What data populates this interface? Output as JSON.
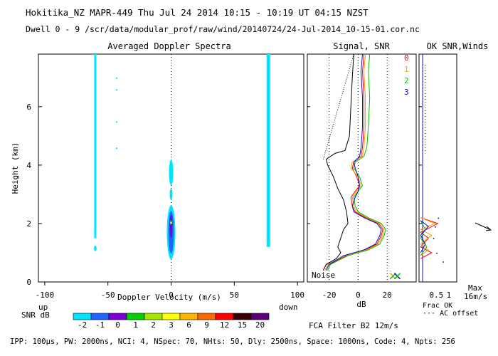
{
  "header": {
    "line1": "Hokitika_NZ  MAPR-449  Thu Jul 24 2014 10:15 - 10:19 UT 04:15 NZST",
    "line2": "Dwell  0 -  9   /scr/data/modular_prof/raw/wind/20140724/24-Jul-2014_10-15-01.cor.nc"
  },
  "footer": {
    "params": "IPP: 100µs,  PW: 2000ns,  NCI:   4,  NSpec: 70,  NHts: 50,  Dly: 2500ns,  Space: 1000ns,  Code: 4,  Npts: 256",
    "filter": "FCA Filter B2 12m/s"
  },
  "colors": {
    "snr_scale": [
      "#00e5ff",
      "#1e64ff",
      "#7a00d6",
      "#00d000",
      "#a5e600",
      "#ffff00",
      "#ffb400",
      "#ff6a00",
      "#ff0000",
      "#3a0000",
      "#5c007a"
    ],
    "channels": [
      "#ff0000",
      "#ffa000",
      "#00c000",
      "#1010cc"
    ]
  },
  "chart_data": [
    {
      "id": "doppler-spectra",
      "type": "heatmap",
      "title": "Averaged Doppler Spectra",
      "xlabel": "Doppler Velocity (m/s)",
      "ylabel": "Height (km)",
      "xlim": [
        -105,
        105
      ],
      "ylim": [
        0,
        7.8
      ],
      "xticks": [
        -100,
        -50,
        0,
        50,
        100
      ],
      "yticks": [
        0,
        2,
        4,
        6
      ],
      "x_end_labels": {
        "left": "up",
        "right": "down"
      },
      "colorbar": {
        "label": "SNR dB",
        "ticks": [
          "-2",
          "-1",
          "0",
          "1",
          "2",
          "3",
          "6",
          "9",
          "12",
          "15",
          "20"
        ]
      },
      "features": [
        {
          "name": "clutter line",
          "velocity": -60,
          "height_range": [
            1.5,
            7.8
          ]
        },
        {
          "name": "clutter line",
          "velocity": 77,
          "height_range": [
            1.2,
            7.8
          ]
        },
        {
          "name": "weak echoes",
          "velocity": -43,
          "height_range": [
            4.5,
            7.0
          ]
        },
        {
          "name": "main echo",
          "velocity": 0,
          "height_range": [
            0.9,
            4.2
          ],
          "peak_height": 2.0
        }
      ]
    },
    {
      "id": "signal-snr",
      "type": "line",
      "title": "Signal, SNR",
      "xlabel": "dB",
      "xlim": [
        -35,
        40
      ],
      "ylim": [
        0,
        7.8
      ],
      "xticks": [
        -20,
        0,
        20
      ],
      "noise_label": "Noise",
      "channel_labels": [
        "0",
        "1",
        "2",
        "3"
      ],
      "series": [
        {
          "name": "Noise",
          "points": [
            [
              -24,
              0.4
            ],
            [
              -22,
              0.6
            ],
            [
              -15,
              0.8
            ],
            [
              -12,
              1.0
            ],
            [
              -14,
              1.2
            ],
            [
              -12,
              1.5
            ],
            [
              -10,
              1.8
            ],
            [
              -7,
              2.0
            ],
            [
              -8,
              2.4
            ],
            [
              -10,
              2.8
            ],
            [
              -14,
              3.2
            ],
            [
              -17,
              3.6
            ],
            [
              -21,
              4.0
            ],
            [
              -22,
              4.2
            ],
            [
              -16,
              4.4
            ],
            [
              -9,
              4.5
            ],
            [
              -6,
              5
            ],
            [
              -5,
              6
            ],
            [
              -4,
              7
            ],
            [
              -3,
              7.8
            ]
          ]
        },
        {
          "name": "0",
          "points": [
            [
              -22,
              0.4
            ],
            [
              -20,
              0.6
            ],
            [
              -8,
              0.9
            ],
            [
              5,
              1.1
            ],
            [
              13,
              1.3
            ],
            [
              16,
              1.6
            ],
            [
              17,
              1.8
            ],
            [
              14,
              2.0
            ],
            [
              5,
              2.2
            ],
            [
              -2,
              2.4
            ],
            [
              -4,
              2.6
            ],
            [
              -5,
              2.9
            ],
            [
              -2,
              3.1
            ],
            [
              1,
              3.3
            ],
            [
              -1,
              3.6
            ],
            [
              -4,
              3.9
            ],
            [
              -3,
              4.1
            ],
            [
              2,
              4.3
            ],
            [
              3,
              4.6
            ],
            [
              4,
              5.3
            ],
            [
              4,
              6.3
            ],
            [
              3,
              7.2
            ],
            [
              4,
              7.8
            ]
          ]
        },
        {
          "name": "1",
          "points": [
            [
              -23,
              0.4
            ],
            [
              -21,
              0.6
            ],
            [
              -9,
              0.9
            ],
            [
              6,
              1.1
            ],
            [
              14,
              1.3
            ],
            [
              17,
              1.6
            ],
            [
              18,
              1.8
            ],
            [
              15,
              2.0
            ],
            [
              6,
              2.2
            ],
            [
              -1,
              2.4
            ],
            [
              -3,
              2.6
            ],
            [
              -4,
              2.9
            ],
            [
              -1,
              3.1
            ],
            [
              2,
              3.3
            ],
            [
              0,
              3.6
            ],
            [
              -5,
              3.9
            ],
            [
              -4,
              4.1
            ],
            [
              3,
              4.3
            ],
            [
              4,
              4.6
            ],
            [
              5,
              5.3
            ],
            [
              5,
              6.3
            ],
            [
              4,
              7.2
            ],
            [
              5,
              7.8
            ]
          ]
        },
        {
          "name": "2",
          "points": [
            [
              -21,
              0.4
            ],
            [
              -19,
              0.6
            ],
            [
              -7,
              0.9
            ],
            [
              7,
              1.1
            ],
            [
              15,
              1.3
            ],
            [
              18,
              1.6
            ],
            [
              19,
              1.8
            ],
            [
              16,
              2.0
            ],
            [
              7,
              2.2
            ],
            [
              0,
              2.4
            ],
            [
              -2,
              2.6
            ],
            [
              -3,
              2.9
            ],
            [
              0,
              3.1
            ],
            [
              3,
              3.3
            ],
            [
              1,
              3.6
            ],
            [
              -3,
              3.9
            ],
            [
              -2,
              4.1
            ],
            [
              4,
              4.3
            ],
            [
              6,
              4.6
            ],
            [
              7,
              5.3
            ],
            [
              8,
              6.3
            ],
            [
              7,
              7.2
            ],
            [
              8,
              7.8
            ]
          ]
        },
        {
          "name": "3",
          "points": [
            [
              -22,
              0.4
            ],
            [
              -20,
              0.6
            ],
            [
              -10,
              0.9
            ],
            [
              4,
              1.1
            ],
            [
              12,
              1.3
            ],
            [
              15,
              1.6
            ],
            [
              16,
              1.8
            ],
            [
              13,
              2.0
            ],
            [
              4,
              2.2
            ],
            [
              -3,
              2.4
            ],
            [
              -4,
              2.6
            ],
            [
              -2,
              2.9
            ],
            [
              0,
              3.1
            ],
            [
              1,
              3.3
            ],
            [
              0,
              3.6
            ],
            [
              -2,
              3.9
            ],
            [
              -3,
              4.1
            ],
            [
              1,
              4.3
            ],
            [
              2,
              4.6
            ],
            [
              3,
              5.3
            ],
            [
              3,
              6.3
            ],
            [
              2,
              7.2
            ],
            [
              3,
              7.8
            ]
          ]
        }
      ],
      "markers": [
        {
          "x": 24,
          "y": 0.2
        },
        {
          "x": 27,
          "y": 0.2
        }
      ]
    },
    {
      "id": "ok-snr-winds",
      "type": "line",
      "title": "OK SNR,Winds",
      "xlim": [
        0,
        1.2
      ],
      "ylim": [
        0,
        7.8
      ],
      "xticks": [
        "0.5",
        "1"
      ],
      "legend": [
        "Frac OK",
        "··· AC offset"
      ],
      "max_label": "Max",
      "max_value": "16m/s",
      "series": [
        {
          "name": "0",
          "points": [
            [
              0.05,
              0.8
            ],
            [
              0.4,
              1.0
            ],
            [
              0.05,
              1.2
            ],
            [
              0.3,
              1.5
            ],
            [
              0.05,
              1.7
            ],
            [
              0.6,
              2.0
            ],
            [
              0.05,
              2.2
            ]
          ]
        },
        {
          "name": "1",
          "points": [
            [
              0.05,
              0.9
            ],
            [
              0.3,
              1.1
            ],
            [
              0.05,
              1.3
            ],
            [
              0.4,
              1.6
            ],
            [
              0.05,
              1.8
            ],
            [
              0.5,
              2.0
            ],
            [
              0.05,
              2.2
            ]
          ]
        },
        {
          "name": "2",
          "points": [
            [
              0.05,
              0.9
            ],
            [
              0.25,
              1.2
            ],
            [
              0.05,
              1.5
            ],
            [
              0.2,
              1.8
            ],
            [
              0.05,
              2.1
            ]
          ]
        },
        {
          "name": "3",
          "points": [
            [
              0.05,
              1.0
            ],
            [
              0.2,
              1.3
            ],
            [
              0.05,
              1.6
            ],
            [
              0.3,
              1.9
            ],
            [
              0.05,
              2.1
            ]
          ]
        }
      ]
    }
  ]
}
